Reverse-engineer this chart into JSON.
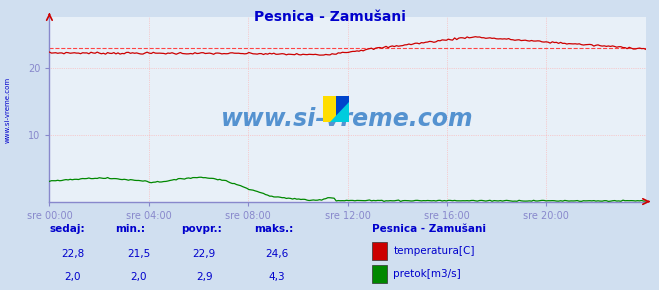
{
  "title": "Pesnica - Zamušani",
  "title_color": "#0000cc",
  "bg_color": "#d0dff0",
  "plot_bg_color": "#e8f0f8",
  "grid_color": "#ffaaaa",
  "grid_color_minor": "#ddddee",
  "axis_color_lr": "#6666cc",
  "axis_color_arrow": "#cc0000",
  "n_points": 288,
  "temp_min": 21.5,
  "temp_max": 24.6,
  "temp_avg": 22.9,
  "temp_current": 22.8,
  "flow_min": 2.0,
  "flow_max": 4.3,
  "flow_avg": 2.9,
  "flow_current": 2.0,
  "ylim": [
    0,
    27.5
  ],
  "yticks": [
    10,
    20
  ],
  "xtick_labels": [
    "sre 00:00",
    "sre 04:00",
    "sre 08:00",
    "sre 12:00",
    "sre 16:00",
    "sre 20:00"
  ],
  "temp_color": "#cc0000",
  "flow_color": "#008800",
  "avg_line_color": "#ff4444",
  "watermark": "www.si-vreme.com",
  "watermark_color": "#4488cc",
  "side_label": "www.si-vreme.com",
  "legend_title": "Pesnica - Zamušani",
  "legend_label1": "temperatura[C]",
  "legend_label2": "pretok[m3/s]",
  "table_headers": [
    "sedaj:",
    "min.:",
    "povpr.:",
    "maks.:"
  ],
  "table_row1": [
    "22,8",
    "21,5",
    "22,9",
    "24,6"
  ],
  "table_row2": [
    "2,0",
    "2,0",
    "2,9",
    "4,3"
  ],
  "info_color": "#0000cc",
  "spine_color": "#8888cc"
}
